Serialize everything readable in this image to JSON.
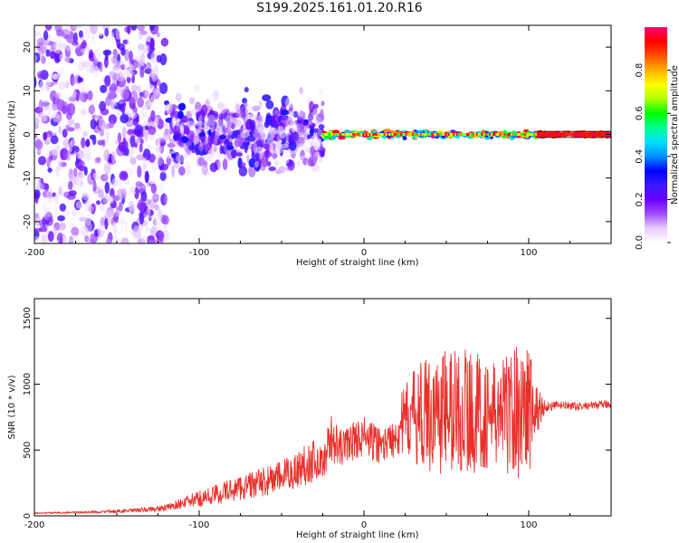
{
  "title": "S199.2025.161.01.20.R16",
  "colors": {
    "snr_line": "#e8302a",
    "frame": "#000000",
    "background": "#ffffff",
    "colorbar_stops": [
      "#ffffff",
      "#e6ccff",
      "#a24dff",
      "#6a00ff",
      "#3a1aff",
      "#0000ff",
      "#0090ff",
      "#00e0ff",
      "#00ff90",
      "#00ff00",
      "#b0ff00",
      "#ffff00",
      "#ffb000",
      "#ff5000",
      "#ff0000",
      "#ff0070"
    ]
  },
  "chart_data": [
    {
      "type": "heatmap",
      "xlabel": "Height of straight line (km)",
      "ylabel": "Frequency (Hz)",
      "xlim": [
        -200,
        150
      ],
      "ylim": [
        -25,
        25
      ],
      "xticks": [
        -200,
        -100,
        0,
        100
      ],
      "yticks": [
        -20,
        -10,
        0,
        10,
        20
      ],
      "xtick_labels": [
        "-200",
        "-100",
        "0",
        "100"
      ],
      "ytick_labels": [
        "-20",
        "-10",
        "0",
        "10",
        "20"
      ],
      "colorbar": {
        "label": "Normalized spectral amplitude",
        "range": [
          0,
          1
        ],
        "ticks": [
          0.0,
          0.2,
          0.4,
          0.6,
          0.8
        ],
        "tick_labels": [
          "0.0",
          "0.2",
          "0.4",
          "0.6",
          "0.8"
        ]
      },
      "regions": [
        {
          "x": [
            -200,
            -120
          ],
          "freq_spread": 25,
          "amplitude": [
            0.0,
            0.25
          ],
          "pattern": "scattered"
        },
        {
          "x": [
            -120,
            -25
          ],
          "freq_spread": 8,
          "amplitude": [
            0.1,
            0.3
          ],
          "pattern": "scattered"
        },
        {
          "x": [
            -25,
            105
          ],
          "freq_spread": 1.5,
          "amplitude": [
            0.3,
            1.0
          ],
          "pattern": "narrow band at 0 Hz"
        },
        {
          "x": [
            105,
            150
          ],
          "freq_spread": 1,
          "amplitude": [
            0.85,
            1.0
          ],
          "pattern": "uniform band at 0 Hz"
        }
      ]
    },
    {
      "type": "line",
      "xlabel": "Height of straight line (km)",
      "ylabel": "SNR (10 * v/v)",
      "xlim": [
        -200,
        150
      ],
      "ylim": [
        0,
        1650
      ],
      "xticks": [
        -200,
        -100,
        0,
        100
      ],
      "yticks": [
        0,
        500,
        1000,
        1500
      ],
      "xtick_labels": [
        "-200",
        "-100",
        "0",
        "100"
      ],
      "ytick_labels": [
        "0",
        "500",
        "1000",
        "1500"
      ],
      "series": [
        {
          "x": [
            -200,
            -180,
            -160,
            -140,
            -120,
            -110,
            -100,
            -90,
            -80,
            -70,
            -60,
            -50,
            -40,
            -35,
            -30,
            -25,
            -20,
            -15,
            -10,
            -5,
            0,
            5,
            10,
            15,
            20,
            25,
            30,
            40,
            50,
            60,
            70,
            80,
            90,
            100,
            105,
            110,
            120,
            130,
            140,
            150
          ],
          "values": [
            20,
            25,
            30,
            40,
            60,
            100,
            130,
            160,
            200,
            230,
            260,
            300,
            350,
            400,
            420,
            400,
            600,
            500,
            550,
            580,
            600,
            560,
            540,
            560,
            650,
            720,
            760,
            780,
            800,
            800,
            780,
            760,
            800,
            820,
            800,
            830,
            840,
            830,
            840,
            850
          ],
          "noise": [
            5,
            8,
            10,
            15,
            25,
            40,
            60,
            80,
            90,
            100,
            110,
            120,
            150,
            170,
            160,
            120,
            180,
            150,
            140,
            150,
            160,
            150,
            140,
            130,
            200,
            280,
            350,
            450,
            500,
            500,
            450,
            400,
            500,
            550,
            200,
            40,
            30,
            30,
            30,
            30
          ]
        }
      ]
    }
  ]
}
